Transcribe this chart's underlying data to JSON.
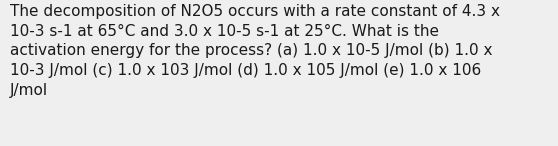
{
  "line1": "The decomposition of N2O5 occurs with a rate constant of 4.3 x",
  "line2": "10-3 s-1 at 65°C and 3.0 x 10-5 s-1 at 25°C. What is the",
  "line3": "activation energy for the process? (a) 1.0 x 10-5 J/mol (b) 1.0 x",
  "line4": "10-3 J/mol (c) 1.0 x 103 J/mol (d) 1.0 x 105 J/mol (e) 1.0 x 106",
  "line5": "J/mol",
  "background_color": "#efefef",
  "text_color": "#1a1a1a",
  "font_size": 11.0,
  "fig_width": 5.58,
  "fig_height": 1.46,
  "dpi": 100
}
